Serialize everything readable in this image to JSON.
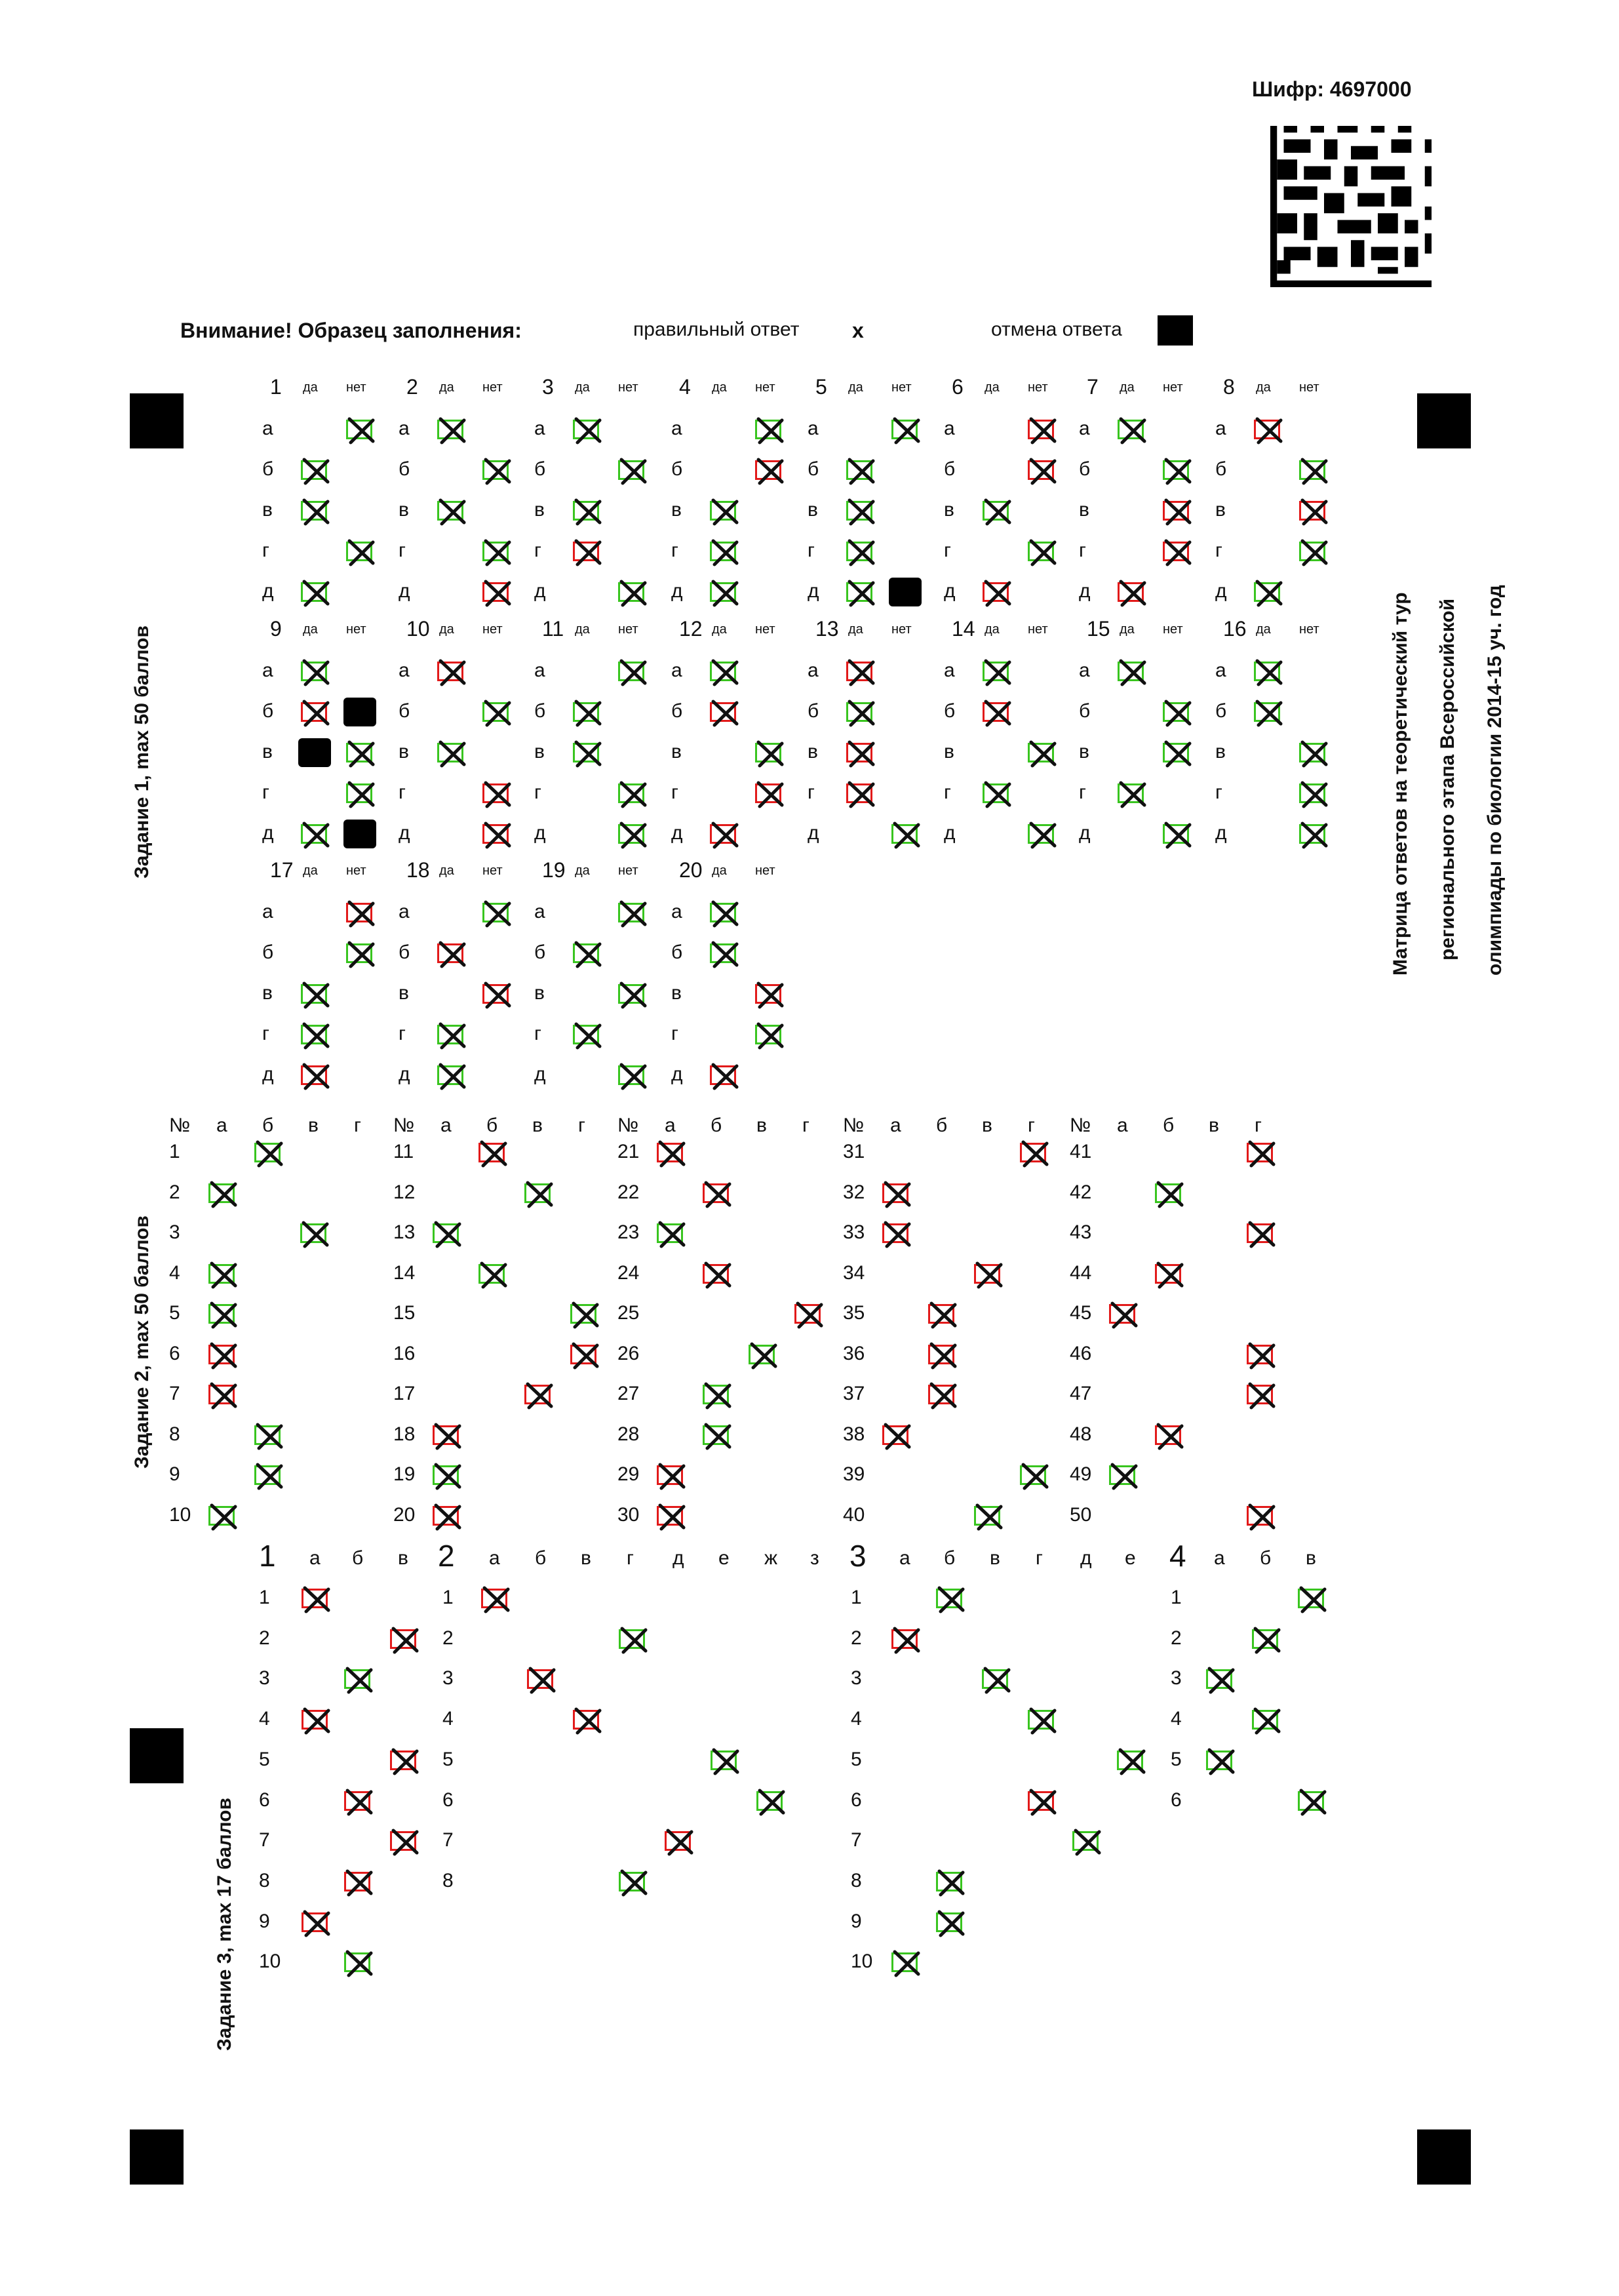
{
  "cipher": "Шифр: 4697000",
  "legend": {
    "attention": "Внимание! Образец заполнения:",
    "correct": "правильный ответ",
    "correct_symbol": "x",
    "cancel": "отмена ответа"
  },
  "side_title": [
    "Матрица ответов на теоретический тур",
    "регионального этапа Всероссийской",
    "олимпиады по биологии 2014-15 уч. год"
  ],
  "task1": {
    "title": "Задание 1, max 50 баллов",
    "yes": "да",
    "no": "нет",
    "rows": [
      "а",
      "б",
      "в",
      "г",
      "д"
    ]
  },
  "task2": {
    "title": "Задание 2, max 50 баллов",
    "num": "№",
    "cols": [
      "а",
      "б",
      "в",
      "г"
    ]
  },
  "task3": {
    "title": "Задание 3, max 17 баллов",
    "groups": [
      {
        "num": "1",
        "cols": [
          "а",
          "б",
          "в"
        ],
        "rows": [
          "1",
          "2",
          "3",
          "4",
          "5",
          "6",
          "7",
          "8",
          "9",
          "10"
        ]
      },
      {
        "num": "2",
        "cols": [
          "а",
          "б",
          "в",
          "г",
          "д",
          "е",
          "ж",
          "з"
        ],
        "rows": [
          "1",
          "2",
          "3",
          "4",
          "5",
          "6",
          "7",
          "8"
        ]
      },
      {
        "num": "3",
        "cols": [
          "а",
          "б",
          "в",
          "г",
          "д",
          "е"
        ],
        "rows": [
          "1",
          "2",
          "3",
          "4",
          "5",
          "6",
          "7",
          "8",
          "9",
          "10"
        ]
      },
      {
        "num": "4",
        "cols": [
          "а",
          "б",
          "в"
        ],
        "rows": [
          "1",
          "2",
          "3",
          "4",
          "5",
          "6"
        ]
      }
    ]
  },
  "colors": {
    "correct": "#39c51f",
    "wrong": "#e21a1a",
    "ink": "#111111"
  }
}
